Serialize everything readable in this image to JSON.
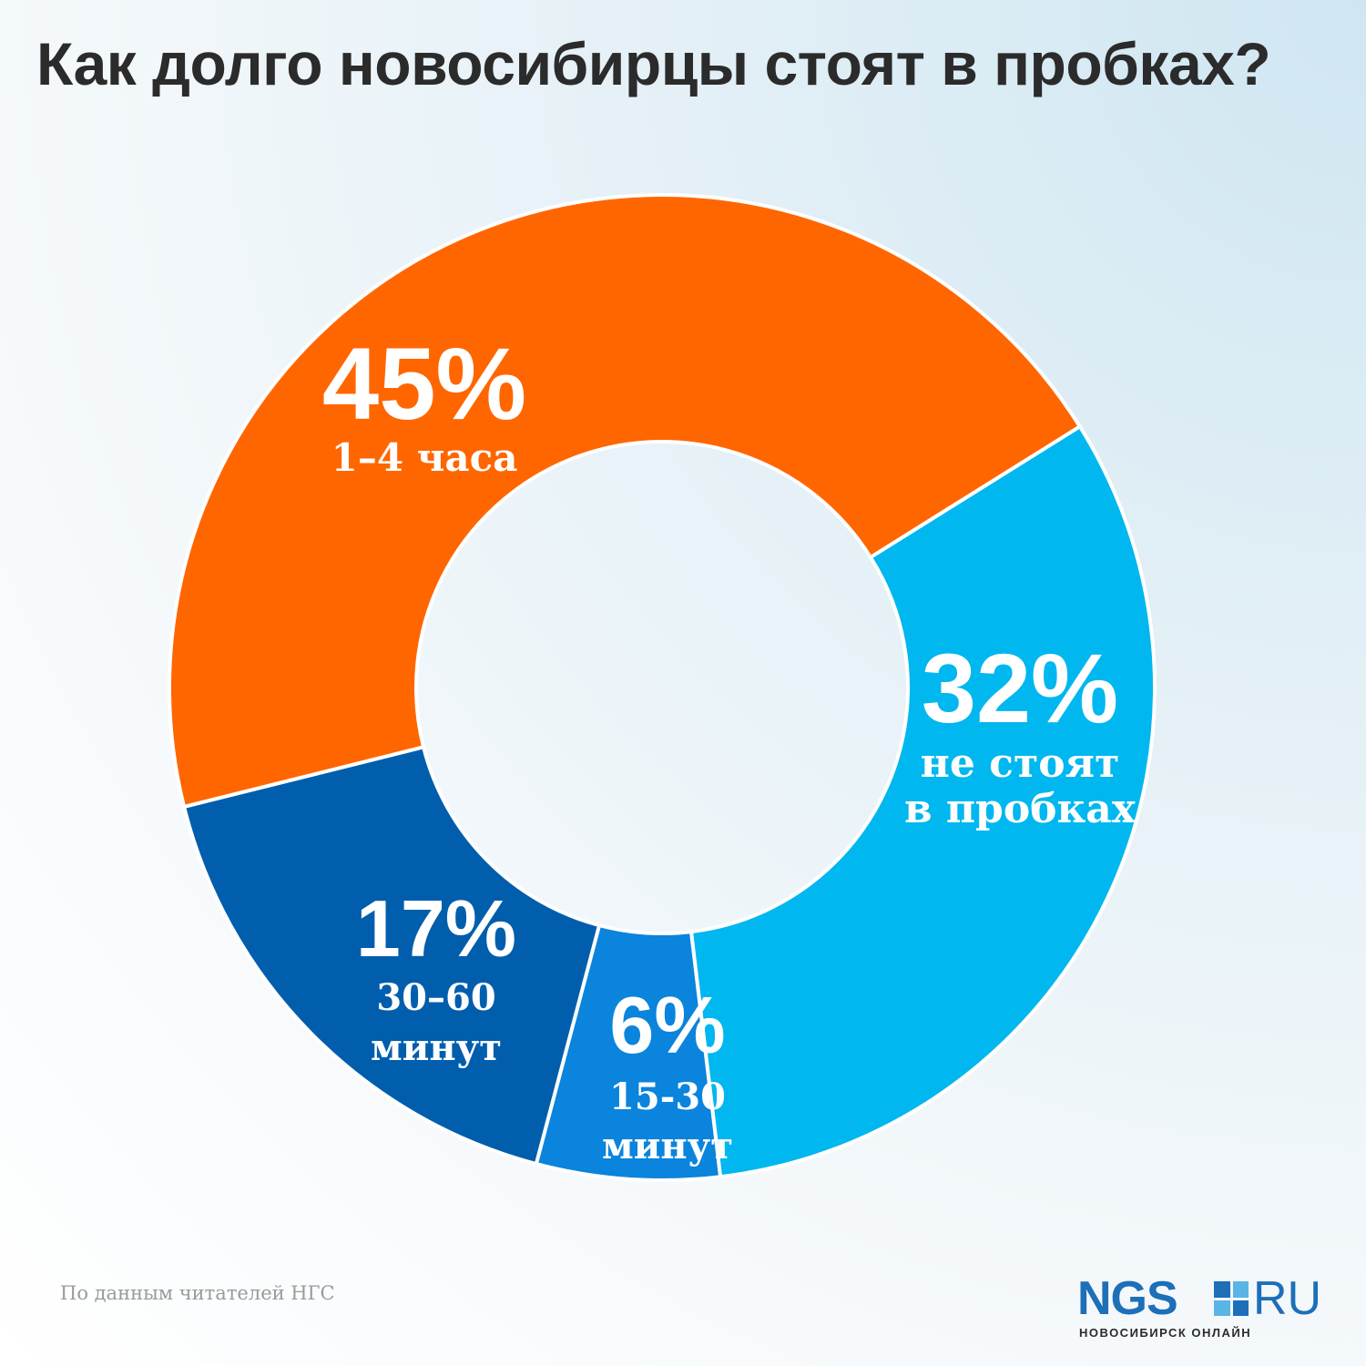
{
  "title": "Как долго новосибирцы стоят в пробках?",
  "source": "По данным читателей НГС",
  "logo": {
    "word": "NGS",
    "tld": "RU",
    "subtitle": "НОВОСИБИРСК ОНЛАЙН"
  },
  "chart_data": {
    "type": "pie",
    "donut": true,
    "title": "Как долго новосибирцы стоят в пробках?",
    "slices": [
      {
        "value": 32,
        "percent_label": "32%",
        "label_lines": [
          "не стоят",
          "в пробках"
        ],
        "color": "#00b7ef"
      },
      {
        "value": 6,
        "percent_label": "6%",
        "label_lines": [
          "15-30",
          "минут"
        ],
        "color": "#0a84dc"
      },
      {
        "value": 17,
        "percent_label": "17%",
        "label_lines": [
          "30–60",
          "минут"
        ],
        "color": "#005ead"
      },
      {
        "value": 45,
        "percent_label": "45%",
        "label_lines": [
          "1–4 часа"
        ],
        "color": "#ff6600"
      }
    ]
  }
}
